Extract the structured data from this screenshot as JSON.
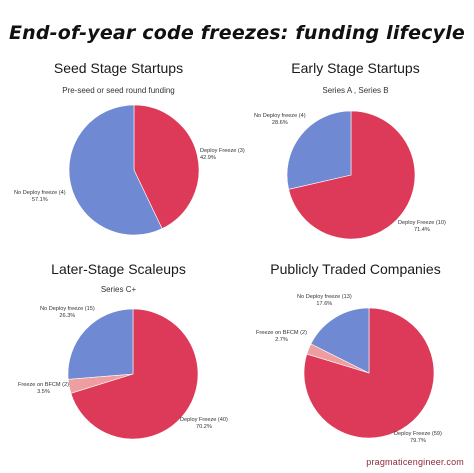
{
  "title": "End-of-year code freezes: funding lifecyle",
  "footer": "pragmaticengineer.com",
  "colors": {
    "deploy_freeze": "#dc3a58",
    "no_deploy_freeze": "#6f8ad3",
    "freeze_bfcm": "#ee9ea0"
  },
  "chart_data": [
    {
      "type": "pie",
      "title": "Seed Stage Startups",
      "subtitle": "Pre-seed or seed round funding",
      "slices": [
        {
          "label": "Deploy Freeze (3)",
          "pct": "42.9%",
          "value": 42.9,
          "color": "#dc3a58"
        },
        {
          "label": "No Deploy freeze (4)",
          "pct": "57.1%",
          "value": 57.1,
          "color": "#6f8ad3"
        }
      ]
    },
    {
      "type": "pie",
      "title": "Early Stage  Startups",
      "subtitle": "Series A , Series B",
      "slices": [
        {
          "label": "Deploy Freeze (10)",
          "pct": "71.4%",
          "value": 71.4,
          "color": "#dc3a58"
        },
        {
          "label": "No Deploy freeze (4)",
          "pct": "28.6%",
          "value": 28.6,
          "color": "#6f8ad3"
        }
      ]
    },
    {
      "type": "pie",
      "title": "Later-Stage Scaleups",
      "subtitle": "Series C+",
      "slices": [
        {
          "label": "Deploy Freeze (40)",
          "pct": "70.2%",
          "value": 70.2,
          "color": "#dc3a58"
        },
        {
          "label": "Freeze on BFCM (2)",
          "pct": "3.5%",
          "value": 3.5,
          "color": "#ee9ea0"
        },
        {
          "label": "No Deploy freeze (15)",
          "pct": "26.3%",
          "value": 26.3,
          "color": "#6f8ad3"
        }
      ]
    },
    {
      "type": "pie",
      "title": "Publicly Traded Companies",
      "subtitle": "",
      "slices": [
        {
          "label": "Deploy Freeze (59)",
          "pct": "79.7%",
          "value": 79.7,
          "color": "#dc3a58"
        },
        {
          "label": "Freeze on BFCM (2)",
          "pct": "2.7%",
          "value": 2.7,
          "color": "#ee9ea0"
        },
        {
          "label": "No Deploy freeze (13)",
          "pct": "17.6%",
          "value": 17.6,
          "color": "#6f8ad3"
        }
      ]
    }
  ]
}
